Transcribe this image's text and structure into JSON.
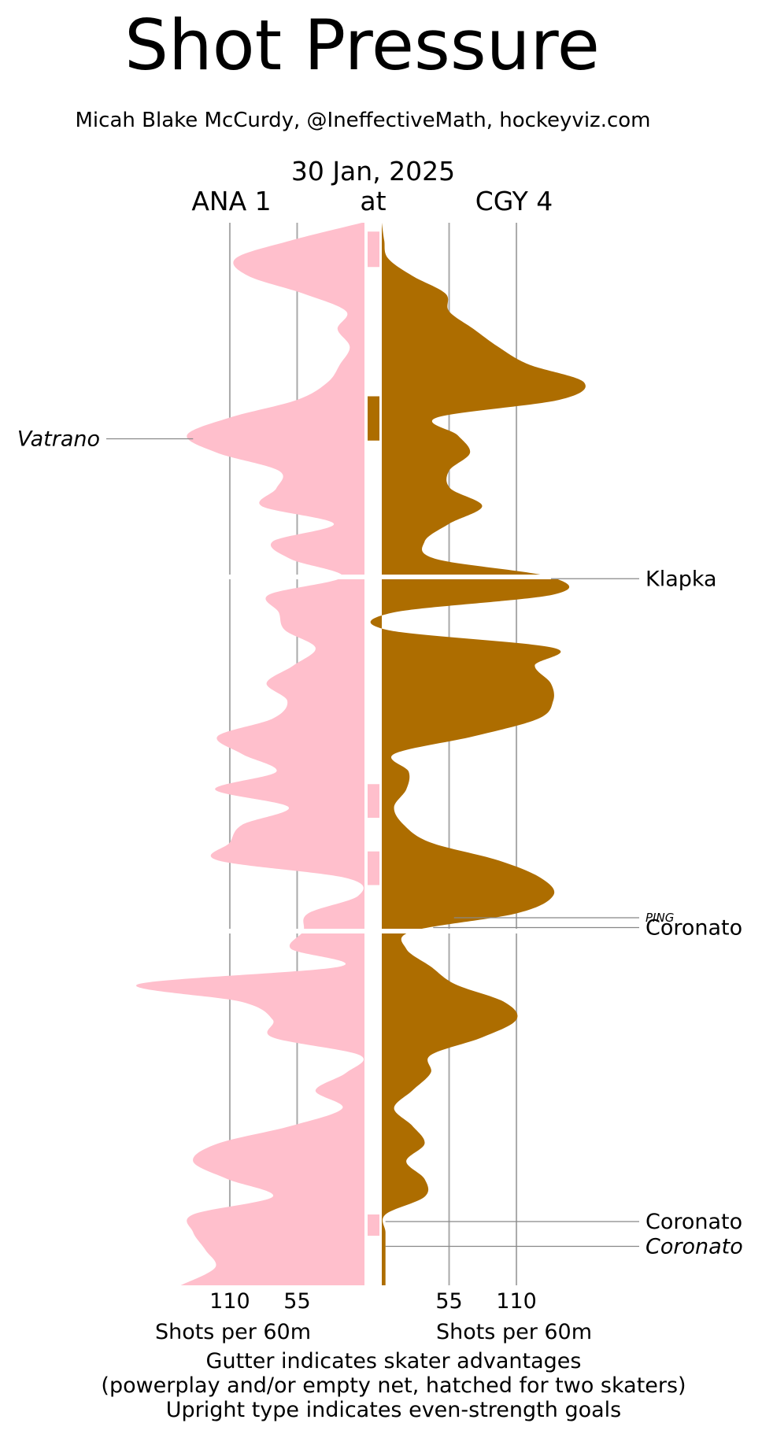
{
  "chart_data": {
    "type": "area",
    "title": "Shot Pressure",
    "subtitle": "Micah Blake McCurdy, @IneffectiveMath, hockeyviz.com",
    "date": "30 Jan, 2025",
    "at_label": "at",
    "away_team": {
      "label": "ANA 1",
      "color": "#FFBFCC"
    },
    "home_team": {
      "label": "CGY 4",
      "color": "#AD6D00"
    },
    "xlabel_left": "Shots per 60m",
    "xlabel_right": "Shots per 60m",
    "x_ticks": [
      110,
      55
    ],
    "x_range": [
      0,
      170
    ],
    "periods": 3,
    "period_minutes": 20,
    "footer_lines": [
      "Gutter indicates skater advantages",
      "(powerplay and/or empty net, hatched for two skaters)",
      "Upright type indicates even-strength goals"
    ],
    "series": [
      {
        "team": "ANA",
        "side": "left",
        "minutes": [
          0,
          1,
          2,
          3,
          4,
          5,
          6,
          7,
          8,
          9,
          10,
          11,
          12,
          13,
          14,
          15,
          16,
          17,
          18,
          19,
          20,
          21,
          22,
          23,
          24,
          25,
          26,
          27,
          28,
          29,
          30,
          31,
          32,
          33,
          34,
          35,
          36,
          37,
          38,
          39,
          40,
          41,
          42,
          43,
          44,
          45,
          46,
          47,
          48,
          49,
          50,
          51,
          52,
          53,
          54,
          55,
          56,
          57,
          58,
          59,
          60
        ],
        "values": [
          2,
          60,
          105,
          95,
          50,
          15,
          22,
          12,
          20,
          30,
          55,
          110,
          145,
          120,
          70,
          72,
          84,
          25,
          75,
          60,
          18,
          78,
          70,
          65,
          40,
          58,
          80,
          63,
          75,
          120,
          100,
          72,
          122,
          62,
          100,
          110,
          120,
          15,
          5,
          46,
          50,
          60,
          20,
          185,
          100,
          75,
          75,
          4,
          15,
          40,
          18,
          60,
          120,
          140,
          112,
          75,
          140,
          140,
          130,
          122,
          150
        ]
      },
      {
        "team": "CGY",
        "side": "right",
        "minutes": [
          0,
          1,
          2,
          3,
          4,
          5,
          6,
          7,
          8,
          9,
          10,
          11,
          12,
          13,
          14,
          15,
          16,
          17,
          18,
          19,
          20,
          21,
          22,
          23,
          24,
          25,
          26,
          27,
          28,
          29,
          30,
          31,
          32,
          33,
          34,
          35,
          36,
          37,
          38,
          39,
          40,
          41,
          42,
          43,
          44,
          45,
          46,
          47,
          48,
          49,
          50,
          51,
          52,
          53,
          54,
          55,
          56,
          57,
          58,
          59,
          60
        ],
        "values": [
          0,
          2,
          5,
          25,
          52,
          55,
          75,
          95,
          120,
          165,
          145,
          45,
          62,
          72,
          55,
          56,
          82,
          55,
          35,
          45,
          138,
          140,
          10,
          5,
          140,
          125,
          138,
          140,
          128,
          75,
          10,
          22,
          20,
          10,
          18,
          40,
          95,
          130,
          140,
          110,
          25,
          20,
          40,
          60,
          100,
          110,
          82,
          40,
          40,
          25,
          10,
          25,
          35,
          20,
          35,
          35,
          3,
          3,
          3,
          3,
          3
        ]
      }
    ],
    "goal_labels": [
      {
        "player": "Vatrano",
        "team": "ANA",
        "minute": 12.2,
        "even_strength": false
      },
      {
        "player": "Klapka",
        "team": "CGY",
        "minute": 20.1,
        "even_strength": true
      },
      {
        "player": "PING",
        "team": "CGY",
        "minute": 39.6,
        "even_strength": false,
        "small": true
      },
      {
        "player": "Coronato",
        "team": "CGY",
        "minute": 39.8,
        "even_strength": true
      },
      {
        "player": "Coronato",
        "team": "CGY",
        "minute": 56.4,
        "even_strength": true
      },
      {
        "player": "Coronato",
        "team": "CGY",
        "minute": 57.8,
        "even_strength": false
      }
    ],
    "gutter_advantages": [
      {
        "team": "ANA",
        "start": 0.5,
        "end": 2.5
      },
      {
        "team": "CGY",
        "start": 9.8,
        "end": 12.3
      },
      {
        "team": "ANA",
        "start": 31.7,
        "end": 33.6
      },
      {
        "team": "ANA",
        "start": 35.5,
        "end": 37.4
      },
      {
        "team": "ANA",
        "start": 56.0,
        "end": 57.2
      }
    ]
  }
}
